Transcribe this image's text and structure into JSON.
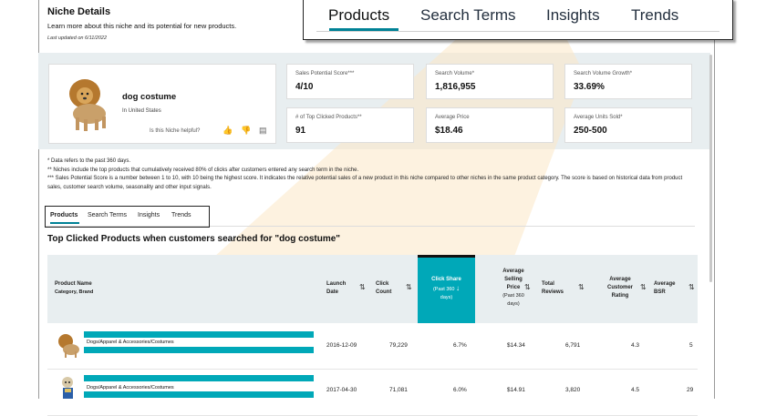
{
  "header": {
    "title": "Niche Details",
    "subtitle": "Learn more about this niche and its potential for new products.",
    "updated": "Last updated on 6/11/2022"
  },
  "zoom_tabs": [
    "Products",
    "Search Terms",
    "Insights",
    "Trends"
  ],
  "niche": {
    "name": "dog costume",
    "location": "In United States",
    "helpful_prompt": "Is this Niche helpful?"
  },
  "metrics": [
    {
      "label": "Sales Potential Score***",
      "value": "4/10"
    },
    {
      "label": "Search Volume*",
      "value": "1,816,955"
    },
    {
      "label": "Search Volume Growth*",
      "value": "33.69%"
    },
    {
      "label": "# of Top Clicked Products**",
      "value": "91"
    },
    {
      "label": "Average Price",
      "value": "$18.46"
    },
    {
      "label": "Average Units Sold*",
      "value": "250-500"
    }
  ],
  "notes": [
    "* Data refers to the past 360 days.",
    "** Niches include the top products that cumulatively received 80% of clicks after customers entered any search term in the niche.",
    "*** Sales Potential Score is a number between 1 to 10, with 10 being the highest score. It indicates the relative potential sales of a new product in this niche compared to other niches in the same product category. The score is based on historical data from product sales, customer search volume, seasonality and other input signals."
  ],
  "tabs": [
    "Products",
    "Search Terms",
    "Insights",
    "Trends"
  ],
  "section_title": "Top Clicked Products when customers searched for \"dog costume\"",
  "table": {
    "headers": {
      "product_name": "Product Name",
      "product_sub": "Category, Brand",
      "launch": [
        "Launch",
        "Date"
      ],
      "click_count": [
        "Click",
        "Count"
      ],
      "click_share": [
        "Click Share",
        "(Past 360",
        "days)"
      ],
      "avg_price": [
        "Average",
        "Selling",
        "Price",
        "(Past 360",
        "days)"
      ],
      "reviews": [
        "Total",
        "Reviews"
      ],
      "rating": [
        "Average",
        "Customer",
        "Rating"
      ],
      "bsr": [
        "Average",
        "BSR"
      ]
    },
    "rows": [
      {
        "category": "Dogs/Apparel & Accessories/Costumes",
        "launch": "2016-12-09",
        "clicks": "79,229",
        "share": "6.7%",
        "price": "$14.34",
        "reviews": "6,791",
        "rating": "4.3",
        "bsr": "5"
      },
      {
        "category": "Dogs/Apparel & Accessories/Costumes",
        "launch": "2017-04-30",
        "clicks": "71,081",
        "share": "6.0%",
        "price": "$14.91",
        "reviews": "3,820",
        "rating": "4.5",
        "bsr": "29"
      }
    ]
  },
  "colors": {
    "accent": "#008296",
    "highlight": "#00a8b8",
    "panel": "#e8eef0",
    "beam": "#fbe7c6"
  }
}
